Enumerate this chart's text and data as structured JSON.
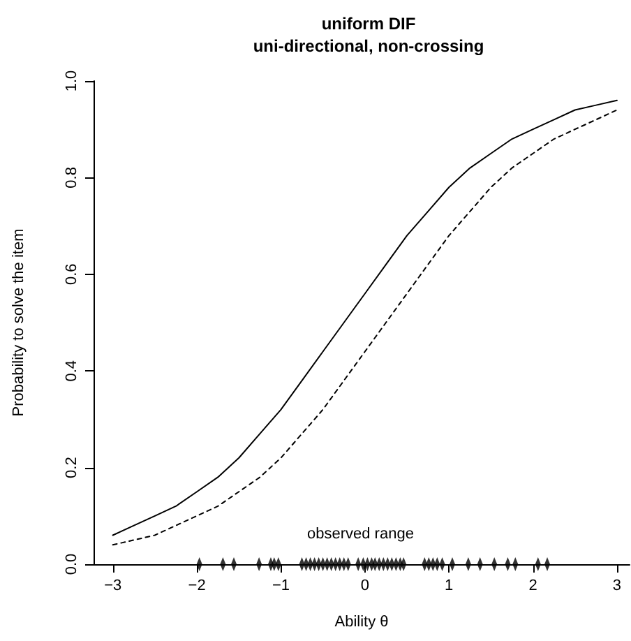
{
  "chart_data": {
    "type": "line",
    "title": "uniform DIF",
    "subtitle": "uni-directional, non-crossing",
    "xlabel": "Ability θ",
    "ylabel": "Probability to solve the item",
    "xlim": [
      -3.23,
      3.15
    ],
    "xticks": [
      -3,
      -2,
      -1,
      0,
      1,
      2,
      3
    ],
    "ylim": [
      0,
      1
    ],
    "yticks": [
      {
        "value": 0,
        "label": "0.0"
      },
      0.2,
      0.4,
      0.6,
      0.8,
      {
        "value": 1,
        "label": "1.0"
      }
    ],
    "annotations": [
      "observed range"
    ],
    "series": [
      {
        "line_style": "solid",
        "color": "#000000",
        "x": [
          -3,
          -2.75,
          -2.5,
          -2.25,
          -2,
          -1.75,
          -1.5,
          -1.25,
          -1,
          -0.75,
          -0.5,
          -0.25,
          0,
          0.25,
          0.5,
          0.75,
          1,
          1.25,
          1.5,
          1.75,
          2,
          2.25,
          2.5,
          2.75,
          3
        ],
        "values": [
          0.06,
          0.08,
          0.1,
          0.12,
          0.15,
          0.18,
          0.22,
          0.27,
          0.32,
          0.38,
          0.44,
          0.5,
          0.56,
          0.62,
          0.68,
          0.73,
          0.78,
          0.82,
          0.85,
          0.88,
          0.9,
          0.92,
          0.94,
          0.95,
          0.96
        ]
      },
      {
        "line_style": "dashed",
        "color": "#000000",
        "x": [
          -3,
          -2.75,
          -2.5,
          -2.25,
          -2,
          -1.75,
          -1.5,
          -1.25,
          -1,
          -0.75,
          -0.5,
          -0.25,
          0,
          0.25,
          0.5,
          0.75,
          1,
          1.25,
          1.5,
          1.75,
          2,
          2.25,
          2.5,
          2.75,
          3
        ],
        "values": [
          0.04,
          0.05,
          0.06,
          0.08,
          0.1,
          0.12,
          0.15,
          0.18,
          0.22,
          0.27,
          0.32,
          0.38,
          0.44,
          0.5,
          0.56,
          0.62,
          0.68,
          0.73,
          0.78,
          0.82,
          0.85,
          0.88,
          0.9,
          0.92,
          0.94
        ]
      },
      {
        "type": "scatter",
        "marker": "diamond",
        "color": "#000000",
        "x": [
          -1.97,
          -1.69,
          -1.56,
          -1.26,
          -1.12,
          -1.08,
          -1.03,
          -0.75,
          -0.7,
          -0.65,
          -0.6,
          -0.55,
          -0.5,
          -0.45,
          -0.4,
          -0.35,
          -0.3,
          -0.25,
          -0.2,
          -0.08,
          -0.02,
          0.03,
          0.08,
          0.12,
          0.17,
          0.22,
          0.27,
          0.32,
          0.37,
          0.42,
          0.46,
          0.71,
          0.76,
          0.81,
          0.86,
          0.92,
          1.04,
          1.23,
          1.37,
          1.54,
          1.7,
          1.79,
          2.06,
          2.17
        ],
        "values": [
          0,
          0,
          0,
          0,
          0,
          0,
          0,
          0,
          0,
          0,
          0,
          0,
          0,
          0,
          0,
          0,
          0,
          0,
          0,
          0,
          0,
          0,
          0,
          0,
          0,
          0,
          0,
          0,
          0,
          0,
          0,
          0,
          0,
          0,
          0,
          0,
          0,
          0,
          0,
          0,
          0,
          0,
          0,
          0
        ]
      }
    ]
  }
}
